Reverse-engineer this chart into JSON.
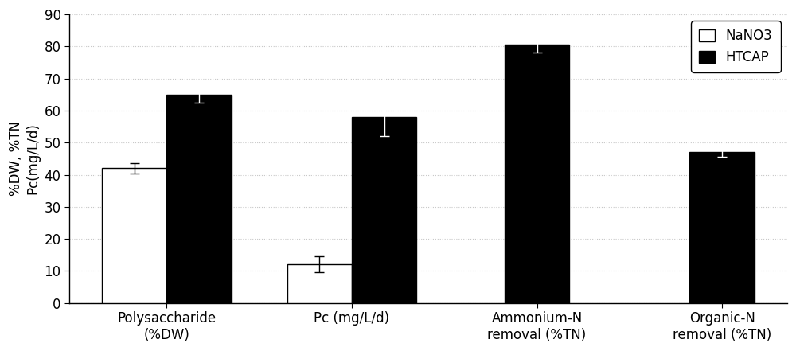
{
  "categories": [
    "Polysaccharide\n(%DW)",
    "Pc (mg/L/d)",
    "Ammonium-N\nremoval (%TN)",
    "Organic-N\nremoval (%TN)"
  ],
  "nanno3_values": [
    42.0,
    12.0,
    null,
    null
  ],
  "htcap_values": [
    65.0,
    58.0,
    80.5,
    47.0
  ],
  "nanno3_errors": [
    1.5,
    2.5,
    null,
    null
  ],
  "htcap_errors": [
    2.5,
    6.0,
    2.5,
    1.5
  ],
  "nanno3_color": "#ffffff",
  "htcap_color": "#000000",
  "bar_edge_color": "#000000",
  "ylabel_line1": "%DW, %TN",
  "ylabel_line2": "Pc(mg/L/d)",
  "ylim": [
    0,
    90
  ],
  "yticks": [
    0,
    10,
    20,
    30,
    40,
    50,
    60,
    70,
    80,
    90
  ],
  "legend_labels": [
    "NaNO3",
    "HTCAP"
  ],
  "bar_width": 0.35,
  "grid_color": "#c8c8c8",
  "background_color": "#ffffff",
  "label_fontsize": 12,
  "tick_fontsize": 12,
  "legend_fontsize": 12
}
